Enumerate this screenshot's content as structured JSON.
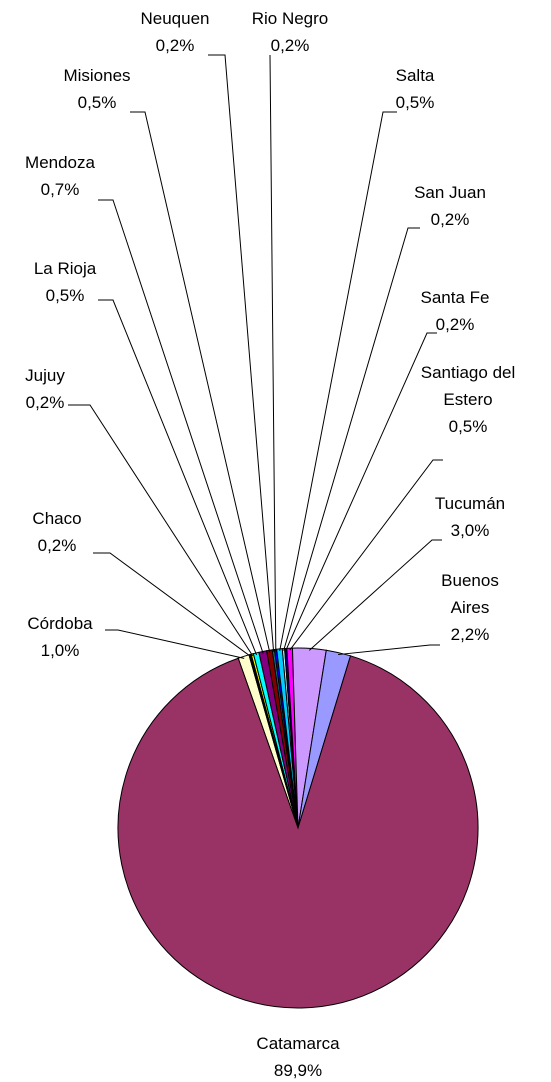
{
  "chart_data": {
    "type": "pie",
    "categories": [
      "Córdoba",
      "Chaco",
      "Jujuy",
      "La Rioja",
      "Mendoza",
      "Misiones",
      "Neuquen",
      "Rio Negro",
      "Salta",
      "San Juan",
      "Santa Fe",
      "Santiago del Estero",
      "Tucumán",
      "Buenos Aires",
      "Catamarca"
    ],
    "values": [
      1.0,
      0.2,
      0.2,
      0.5,
      0.7,
      0.5,
      0.2,
      0.2,
      0.5,
      0.2,
      0.2,
      0.5,
      3.0,
      2.2,
      89.9
    ],
    "value_labels": [
      "1,0%",
      "0,2%",
      "0,2%",
      "0,5%",
      "0,7%",
      "0,5%",
      "0,2%",
      "0,2%",
      "0,5%",
      "0,2%",
      "0,2%",
      "0,5%",
      "3,0%",
      "2,2%",
      "89,9%"
    ],
    "colors": [
      "#FFFFCC",
      "#000000",
      "#FFFF00",
      "#00FFFF",
      "#800080",
      "#800000",
      "#008080",
      "#0000FF",
      "#00CCFF",
      "#CCFFFF",
      "#000080",
      "#FF00FF",
      "#CC99FF",
      "#9999FF",
      "#993366"
    ]
  }
}
